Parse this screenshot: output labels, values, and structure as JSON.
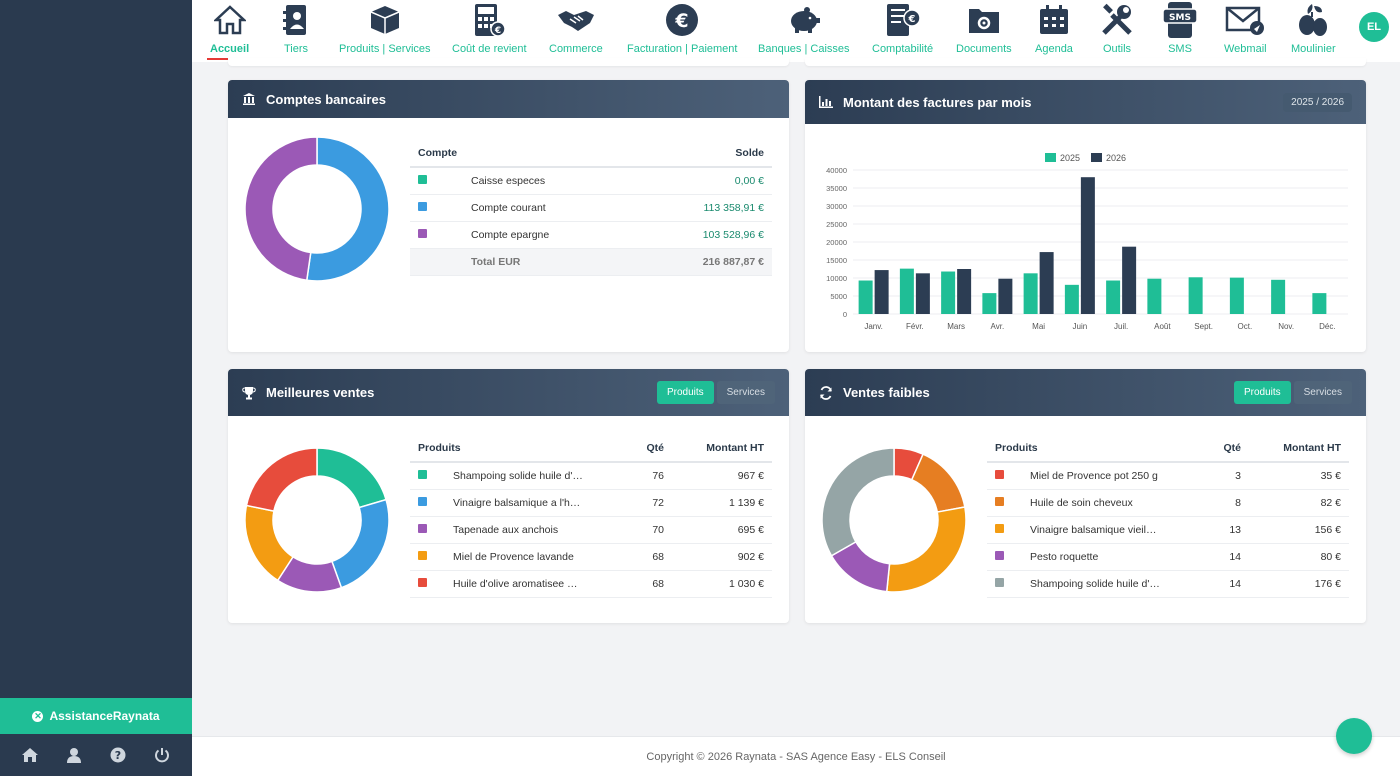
{
  "sidebar": {
    "assist_label": "AssistanceRaynata"
  },
  "nav": {
    "items": [
      {
        "label": "Accueil",
        "icon": "home-icon"
      },
      {
        "label": "Tiers",
        "icon": "address-book-icon"
      },
      {
        "label": "Produits | Services",
        "icon": "box-icon"
      },
      {
        "label": "Coût de revient",
        "icon": "calculator-icon"
      },
      {
        "label": "Commerce",
        "icon": "handshake-icon"
      },
      {
        "label": "Facturation | Paiement",
        "icon": "euro-icon"
      },
      {
        "label": "Banques | Caisses",
        "icon": "piggy-bank-icon"
      },
      {
        "label": "Comptabilité",
        "icon": "ledger-icon"
      },
      {
        "label": "Documents",
        "icon": "folder-gear-icon"
      },
      {
        "label": "Agenda",
        "icon": "calendar-icon"
      },
      {
        "label": "Outils",
        "icon": "tools-icon"
      },
      {
        "label": "SMS",
        "icon": "sms-icon"
      },
      {
        "label": "Webmail",
        "icon": "mail-icon"
      },
      {
        "label": "Moulinier",
        "icon": "olive-icon"
      }
    ],
    "avatar": "EL"
  },
  "bank": {
    "title": "Comptes bancaires",
    "col_account": "Compte",
    "col_balance": "Solde",
    "rows": [
      {
        "name": "Caisse especes",
        "value": "0,00 €",
        "color": "#1fbe96",
        "amount": 0
      },
      {
        "name": "Compte courant",
        "value": "113 358,91 €",
        "color": "#3b9be0",
        "amount": 113358.91
      },
      {
        "name": "Compte epargne",
        "value": "103 528,96 €",
        "color": "#9b59b6",
        "amount": 103528.96
      }
    ],
    "total_label": "Total EUR",
    "total_value": "216 887,87 €"
  },
  "invoices": {
    "title": "Montant des factures par mois",
    "badge": "2025 / 2026",
    "legend": [
      "2025",
      "2026"
    ]
  },
  "chart_data": {
    "type": "bar",
    "categories": [
      "Janv.",
      "Févr.",
      "Mars",
      "Avr.",
      "Mai",
      "Juin",
      "Juil.",
      "Août",
      "Sept.",
      "Oct.",
      "Nov.",
      "Déc."
    ],
    "series": [
      {
        "name": "2025",
        "color": "#1fbe96",
        "values": [
          9300,
          12600,
          11800,
          5800,
          11300,
          8100,
          9300,
          9800,
          10200,
          10100,
          9500,
          5800
        ]
      },
      {
        "name": "2026",
        "color": "#2c3d53",
        "values": [
          12200,
          11300,
          12500,
          9800,
          17200,
          38000,
          18700,
          null,
          null,
          null,
          null,
          null
        ]
      }
    ],
    "ylim": [
      0,
      40000
    ],
    "yticks": [
      "0",
      "5000",
      "10000",
      "15000",
      "20000",
      "25000",
      "30000",
      "35000",
      "40000"
    ],
    "legend_position": "top"
  },
  "best": {
    "title": "Meilleures ventes",
    "btn_products": "Produits",
    "btn_services": "Services",
    "col_product": "Produits",
    "col_qty": "Qté",
    "col_amount": "Montant HT",
    "rows": [
      {
        "name": "Shampoing solide huile d'…",
        "qty": "76",
        "amount": "967 €",
        "color": "#1fbe96",
        "v": 967
      },
      {
        "name": "Vinaigre balsamique a l'h…",
        "qty": "72",
        "amount": "1 139 €",
        "color": "#3b9be0",
        "v": 1139
      },
      {
        "name": "Tapenade aux anchois",
        "qty": "70",
        "amount": "695 €",
        "color": "#9b59b6",
        "v": 695
      },
      {
        "name": "Miel de Provence lavande",
        "qty": "68",
        "amount": "902 €",
        "color": "#f39c12",
        "v": 902
      },
      {
        "name": "Huile d'olive aromatisee …",
        "qty": "68",
        "amount": "1 030 €",
        "color": "#e74c3c",
        "v": 1030
      }
    ]
  },
  "low": {
    "title": "Ventes faibles",
    "btn_products": "Produits",
    "btn_services": "Services",
    "col_product": "Produits",
    "col_qty": "Qté",
    "col_amount": "Montant HT",
    "rows": [
      {
        "name": "Miel de Provence pot 250 g",
        "qty": "3",
        "amount": "35 €",
        "color": "#e74c3c",
        "v": 35
      },
      {
        "name": "Huile de soin cheveux",
        "qty": "8",
        "amount": "82 €",
        "color": "#e67e22",
        "v": 82
      },
      {
        "name": "Vinaigre balsamique vieil…",
        "qty": "13",
        "amount": "156 €",
        "color": "#f39c12",
        "v": 156
      },
      {
        "name": "Pesto roquette",
        "qty": "14",
        "amount": "80 €",
        "color": "#9b59b6",
        "v": 80
      },
      {
        "name": "Shampoing solide huile d'…",
        "qty": "14",
        "amount": "176 €",
        "color": "#95a5a6",
        "v": 176
      }
    ]
  },
  "footer": "Copyright © 2026 Raynata - SAS Agence Easy - ELS Conseil"
}
